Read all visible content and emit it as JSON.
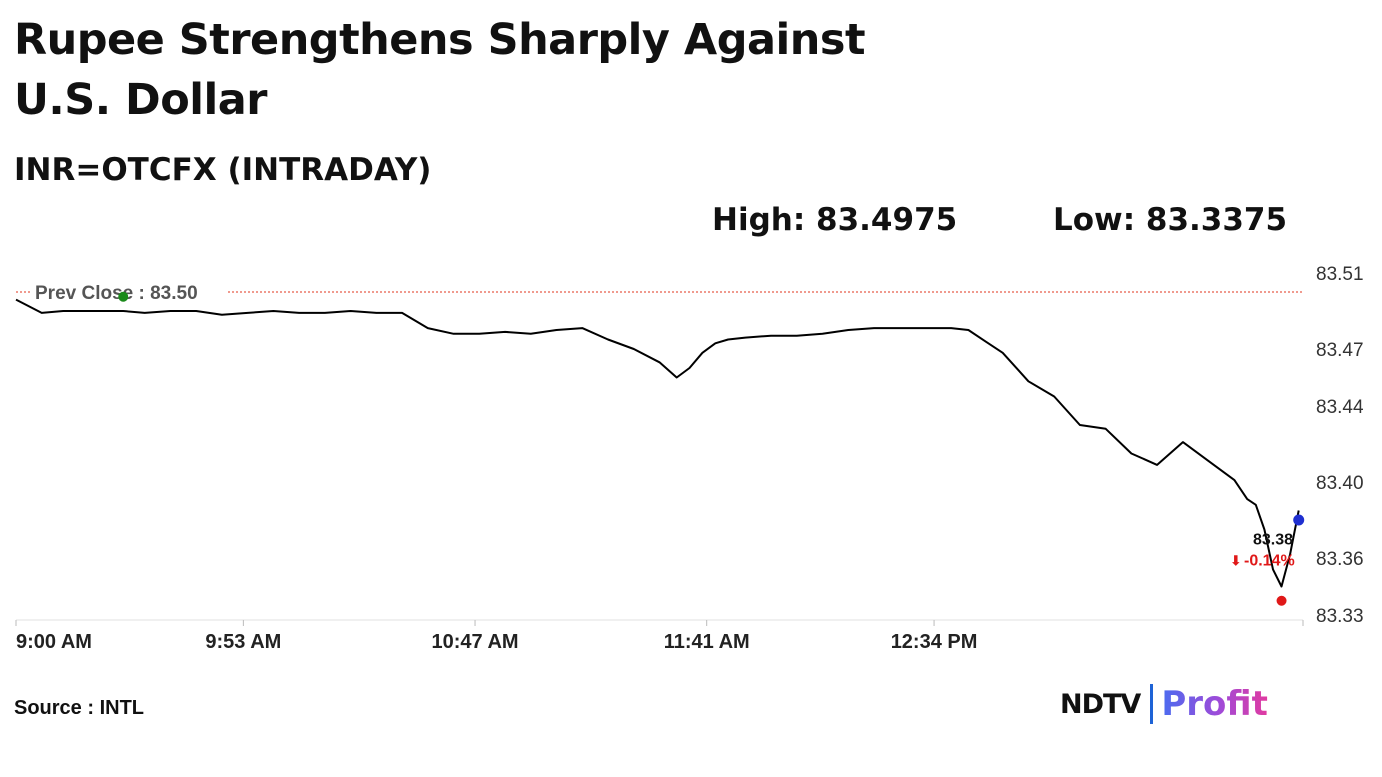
{
  "header": {
    "title": "Rupee Strengthens Sharply Against U.S. Dollar",
    "subtitle": "INR=OTCFX (INTRADAY)",
    "high_label": "High: 83.4975",
    "low_label": "Low: 83.3375"
  },
  "footer": {
    "source": "Source : INTL",
    "brand_left": "NDTV",
    "brand_right": "Profit"
  },
  "chart_data": {
    "type": "line",
    "title": "Rupee Strengthens Sharply Against U.S. Dollar",
    "subtitle": "INR=OTCFX (INTRADAY)",
    "x_tick_labels": [
      "9:00 AM",
      "9:53 AM",
      "10:47 AM",
      "11:41 AM",
      "12:34 PM"
    ],
    "x_tick_minutes": [
      540,
      593,
      647,
      701,
      754
    ],
    "x_range_minutes": [
      540,
      840
    ],
    "y_tick_labels": [
      "83.51",
      "83.47",
      "83.44",
      "83.40",
      "83.36",
      "83.33"
    ],
    "y_tick_values": [
      83.51,
      83.47,
      83.44,
      83.4,
      83.36,
      83.33
    ],
    "ylim": [
      83.33,
      83.51
    ],
    "grid": false,
    "prev_close": {
      "label": "Prev Close : 83.50",
      "value": 83.5
    },
    "high": 83.4975,
    "low": 83.3375,
    "last": {
      "price_label": "83.38",
      "change_label": "-0.14%",
      "value": 83.38
    },
    "colors": {
      "line": "#000000",
      "prev_close": "#e0341e",
      "high_dot": "#1a8a1a",
      "low_dot": "#e01818",
      "last_dot": "#1f2fd0",
      "change": "#e01818"
    },
    "series": [
      {
        "x": [
          540,
          546,
          551,
          557,
          565,
          570,
          576,
          582,
          588,
          594,
          600,
          606,
          612,
          618,
          624,
          630,
          636,
          642,
          648,
          654,
          660,
          666,
          672,
          678,
          684,
          690,
          694,
          697,
          700,
          703,
          706,
          710,
          716,
          722,
          728,
          734,
          740,
          746,
          752,
          758,
          762,
          766,
          770,
          776,
          782,
          788,
          794,
          800,
          806,
          812,
          818,
          824,
          827,
          829,
          831,
          833,
          835,
          837,
          839
        ],
        "values": [
          83.496,
          83.489,
          83.49,
          83.49,
          83.49,
          83.489,
          83.49,
          83.49,
          83.488,
          83.489,
          83.49,
          83.489,
          83.489,
          83.49,
          83.489,
          83.489,
          83.481,
          83.478,
          83.478,
          83.479,
          83.478,
          83.48,
          83.481,
          83.475,
          83.47,
          83.463,
          83.455,
          83.46,
          83.468,
          83.473,
          83.475,
          83.476,
          83.477,
          83.477,
          83.478,
          83.48,
          83.481,
          83.481,
          83.481,
          83.481,
          83.48,
          83.474,
          83.468,
          83.453,
          83.445,
          83.43,
          83.428,
          83.415,
          83.409,
          83.421,
          83.411,
          83.401,
          83.391,
          83.388,
          83.375,
          83.354,
          83.345,
          83.362,
          83.385
        ]
      }
    ]
  }
}
